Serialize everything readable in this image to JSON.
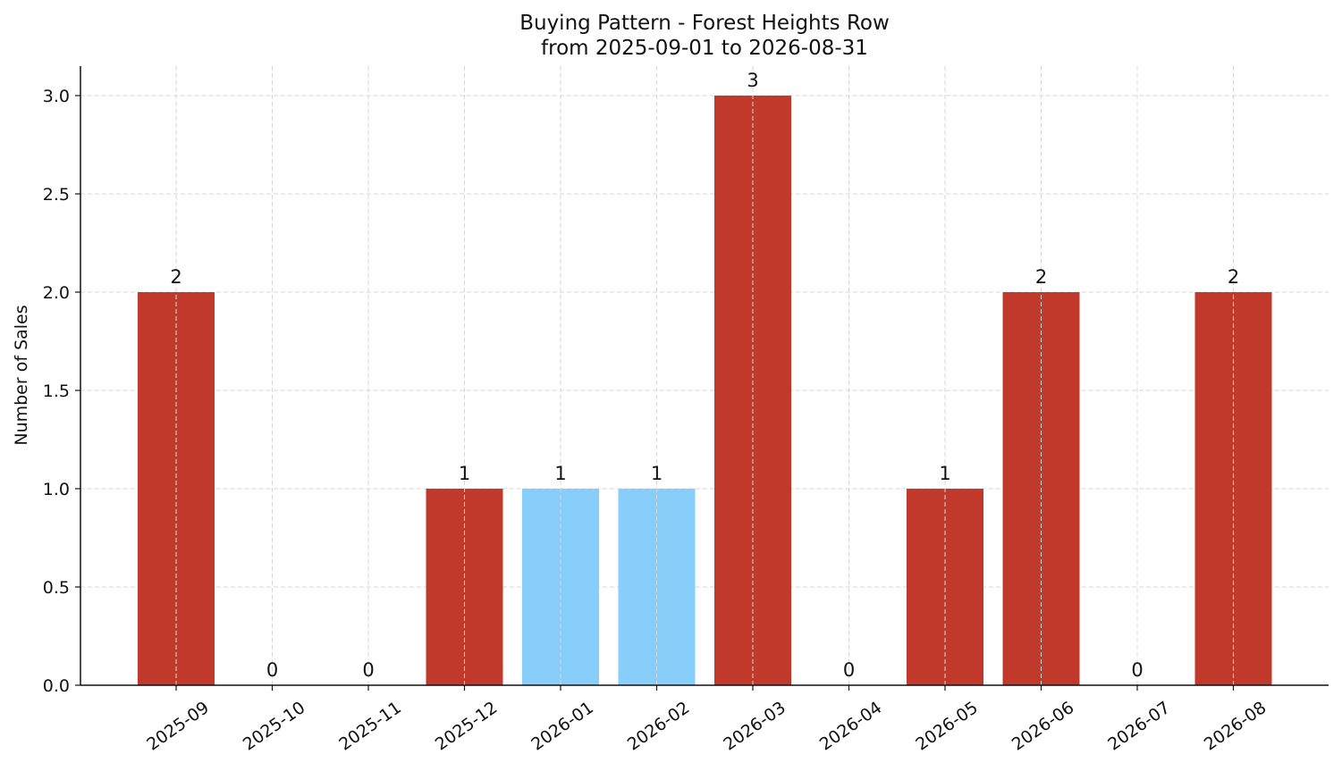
{
  "chart_data": {
    "type": "bar",
    "title": "Buying Pattern - Forest Heights Row",
    "subtitle": "from 2025-09-01 to 2026-08-31",
    "xlabel": "",
    "ylabel": "Number of Sales",
    "categories": [
      "2025-09",
      "2025-10",
      "2025-11",
      "2025-12",
      "2026-01",
      "2026-02",
      "2026-03",
      "2026-04",
      "2026-05",
      "2026-06",
      "2026-07",
      "2026-08"
    ],
    "values": [
      2,
      0,
      0,
      1,
      1,
      1,
      3,
      0,
      1,
      2,
      0,
      2
    ],
    "data_labels": [
      "2",
      "0",
      "0",
      "1",
      "1",
      "1",
      "3",
      "0",
      "1",
      "2",
      "0",
      "2"
    ],
    "bar_colors": [
      "#c0392b",
      "#c0392b",
      "#c0392b",
      "#c0392b",
      "#87cefa",
      "#87cefa",
      "#c0392b",
      "#c0392b",
      "#c0392b",
      "#c0392b",
      "#c0392b",
      "#c0392b"
    ],
    "ylim": [
      0,
      3.15
    ],
    "yticks": [
      0.0,
      0.5,
      1.0,
      1.5,
      2.0,
      2.5,
      3.0
    ],
    "ytick_labels": [
      "0.0",
      "0.5",
      "1.0",
      "1.5",
      "2.0",
      "2.5",
      "3.0"
    ],
    "grid": true,
    "legend": "none"
  }
}
